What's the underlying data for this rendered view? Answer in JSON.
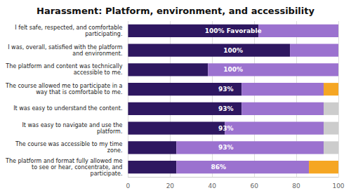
{
  "chart_data": {
    "type": "bar",
    "orientation": "horizontal",
    "stacked": true,
    "title": "Harassment: Platform, environment, and accessibility",
    "categories": [
      "I felt safe, respected, and comfortable\nparticipating.",
      "I was, overall, satisfied with the platform\nand environment.",
      "The platform and content was technically\naccessible to me.",
      "The course allowed me to participate in a\nway that is comfortable to me.",
      "It was easy to understand the content.",
      "It was easy to navigate and use the\nplatform.",
      "The course was accessible to my time\nzone.",
      "The platform and format fully allowed me\nto see or hear, concentrate, and\nparticipate."
    ],
    "series": [
      {
        "color": "#2e1760",
        "values": [
          62,
          77,
          38,
          54,
          54,
          46,
          23,
          23
        ]
      },
      {
        "color": "#9b72cf",
        "values": [
          38,
          23,
          62,
          39,
          39,
          47,
          70,
          63
        ]
      },
      {
        "color": "#cccccc",
        "values": [
          0,
          0,
          0,
          0,
          7,
          7,
          7,
          0
        ]
      },
      {
        "color": "#f5a623",
        "values": [
          0,
          0,
          0,
          7,
          0,
          0,
          0,
          14
        ]
      }
    ],
    "annotations": [
      "100% Favorable",
      "100%",
      "100%",
      "93%",
      "93%",
      "93%",
      "93%",
      "86%"
    ],
    "xlim": [
      0,
      100
    ],
    "xticks": [
      0,
      20,
      40,
      60,
      80,
      100
    ],
    "grid": true
  }
}
